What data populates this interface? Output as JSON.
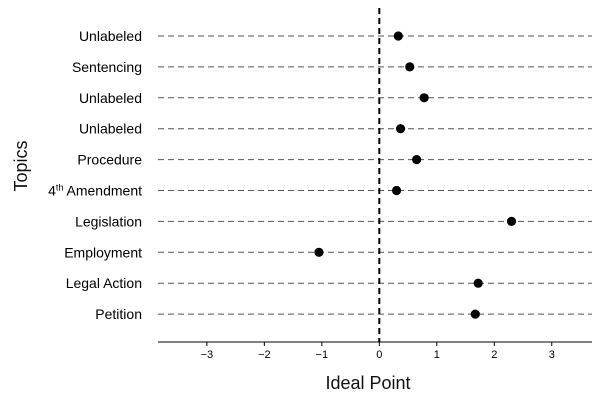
{
  "chart_data": {
    "type": "scatter",
    "xlabel": "Ideal Point",
    "ylabel": "Topics",
    "xlim": [
      -3.85,
      3.7
    ],
    "xticks": [
      -3,
      -2,
      -1,
      0,
      1,
      2,
      3
    ],
    "xtick_labels": [
      "−3",
      "−2",
      "−1",
      "0",
      "1",
      "2",
      "3"
    ],
    "reference_line_x": 0,
    "categories": [
      {
        "label": "Unlabeled",
        "sup": ""
      },
      {
        "label": "Sentencing",
        "sup": ""
      },
      {
        "label": "Unlabeled",
        "sup": ""
      },
      {
        "label": "Unlabeled",
        "sup": ""
      },
      {
        "label": "Procedure",
        "sup": ""
      },
      {
        "label": "4",
        "sup": "th",
        "rest": " Amendment"
      },
      {
        "label": "Legislation",
        "sup": ""
      },
      {
        "label": "Employment",
        "sup": ""
      },
      {
        "label": "Legal Action",
        "sup": ""
      },
      {
        "label": "Petition",
        "sup": ""
      }
    ],
    "values": [
      0.33,
      0.53,
      0.78,
      0.37,
      0.65,
      0.3,
      2.3,
      -1.05,
      1.72,
      1.67
    ],
    "grid": "horizontal dashed per topic",
    "colors": {
      "point": "#000000",
      "grid": "#555555",
      "axis": "#000000"
    }
  }
}
